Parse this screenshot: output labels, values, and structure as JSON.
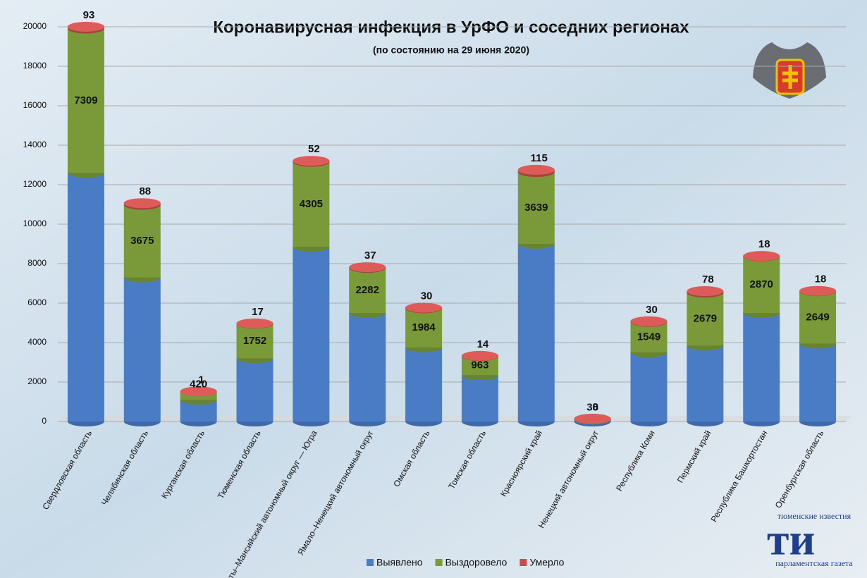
{
  "chart_data": {
    "type": "bar",
    "stacked": true,
    "title": "Коронавирусная инфекция в УрФО и соседних регионах",
    "subtitle": "(по состоянию на 29 июня 2020)",
    "categories": [
      "Свердловская область",
      "Челябинская область",
      "Курганская область",
      "Тюменская область",
      "Ханты–Мансийский  автономный округ — Югра",
      "Ямало–Ненецкий автономный округ",
      "Омская область",
      "Томская область",
      "Красноярский край",
      "Ненецкий автономный округ",
      "Республика Коми",
      "Пермский край",
      "Республика Башкортостан",
      "Оренбургская область"
    ],
    "series": [
      {
        "name": "Выявлено",
        "color": "#4a7cc6",
        "values": [
          12600,
          7300,
          1100,
          3200,
          8850,
          5500,
          3750,
          2350,
          9000,
          100,
          3500,
          3850,
          5500,
          3950
        ]
      },
      {
        "name": "Выздоровело",
        "color": "#7a9a3a",
        "values": [
          7309,
          3675,
          420,
          1752,
          4305,
          2282,
          1984,
          963,
          3639,
          38,
          1549,
          2679,
          2870,
          2649
        ]
      },
      {
        "name": "Умерло",
        "color": "#c0504d",
        "values": [
          93,
          88,
          1,
          17,
          52,
          37,
          30,
          14,
          115,
          0,
          30,
          78,
          18,
          18
        ]
      }
    ],
    "ylim": [
      0,
      20000
    ],
    "yticks": [
      0,
      2000,
      4000,
      6000,
      8000,
      10000,
      12000,
      14000,
      16000,
      18000,
      20000
    ],
    "grid": true,
    "legend": "bottom"
  },
  "logo": {
    "top": "тюменские известия",
    "bottom": "парламентская газета"
  }
}
